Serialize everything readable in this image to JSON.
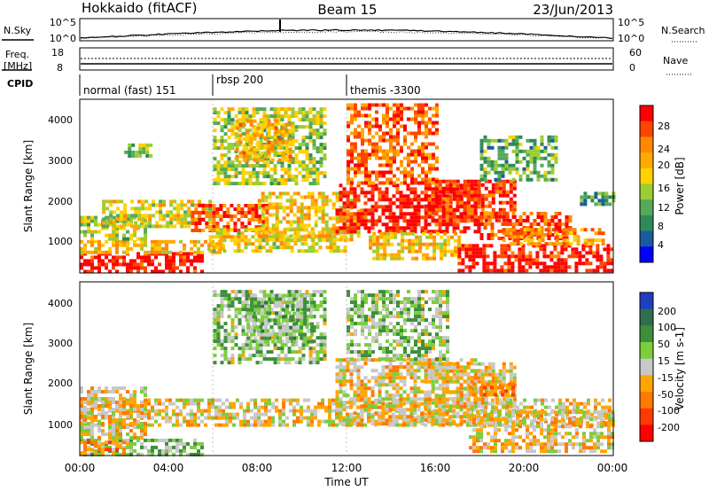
{
  "header": {
    "title": "Hokkaido (fitACF)",
    "beam": "Beam 15",
    "date": "23/Jun/2013"
  },
  "noise_panel": {
    "left_label": "N.Sky",
    "right_label": "N.Search",
    "yticks_left": [
      "10^5",
      "10^0"
    ],
    "yticks_right": [
      "10^5",
      "10^0"
    ]
  },
  "freq_panel": {
    "left_label_1": "Freq.",
    "left_label_2": "[MHz]",
    "right_label": "Nave",
    "yticks_left": [
      "18",
      "8"
    ],
    "yticks_right": [
      "60",
      "0"
    ]
  },
  "cpid_panel": {
    "label": "CPID",
    "modes": [
      {
        "label": "normal (fast) 151",
        "start_hour": 0
      },
      {
        "label": "rbsp 200",
        "start_hour": 6
      },
      {
        "label": "themis -3300",
        "start_hour": 12
      }
    ]
  },
  "xaxis": {
    "label": "Time UT",
    "ticks": [
      "00:00",
      "04:00",
      "08:00",
      "12:00",
      "16:00",
      "20:00",
      "00:00"
    ]
  },
  "chart_data": [
    {
      "type": "heatmap",
      "name": "power",
      "ylabel": "Slant Range [km]",
      "yticks": [
        "4000",
        "3000",
        "2000",
        "1000"
      ],
      "ylim": [
        180,
        4500
      ],
      "xlim_hours": [
        0,
        24
      ],
      "colorbar": {
        "label": "Power [dB]",
        "ticks": [
          "28",
          "24",
          "20",
          "16",
          "12",
          "8",
          "4"
        ],
        "colors": [
          "#ff0000",
          "#ff4400",
          "#ff8800",
          "#ffaa00",
          "#ffd100",
          "#9acd32",
          "#56a85a",
          "#2e8b57",
          "#1a5aa0",
          "#0000ff"
        ]
      },
      "regions": [
        {
          "x": [
            0.0,
            5.5
          ],
          "y": [
            200,
            700
          ],
          "level": 0.95
        },
        {
          "x": [
            0.0,
            6.5
          ],
          "y": [
            700,
            1000
          ],
          "level": 0.6
        },
        {
          "x": [
            0.0,
            3.0
          ],
          "y": [
            1000,
            1600
          ],
          "level": 0.45
        },
        {
          "x": [
            1.0,
            6.0
          ],
          "y": [
            1300,
            2000
          ],
          "level": 0.55
        },
        {
          "x": [
            5.0,
            8.5
          ],
          "y": [
            1200,
            1900
          ],
          "level": 0.85
        },
        {
          "x": [
            5.8,
            12.0
          ],
          "y": [
            700,
            1300
          ],
          "level": 0.55
        },
        {
          "x": [
            6.0,
            11.0
          ],
          "y": [
            2400,
            4300
          ],
          "level": 0.45
        },
        {
          "x": [
            7.0,
            9.5
          ],
          "y": [
            3000,
            4000
          ],
          "level": 0.65
        },
        {
          "x": [
            8.0,
            12.5
          ],
          "y": [
            1000,
            2200
          ],
          "level": 0.6
        },
        {
          "x": [
            11.5,
            18.0
          ],
          "y": [
            1200,
            2400
          ],
          "level": 0.95
        },
        {
          "x": [
            12.0,
            16.0
          ],
          "y": [
            2400,
            4400
          ],
          "level": 0.8
        },
        {
          "x": [
            13.0,
            17.0
          ],
          "y": [
            500,
            1200
          ],
          "level": 0.6
        },
        {
          "x": [
            15.5,
            19.5
          ],
          "y": [
            1500,
            2500
          ],
          "level": 0.9
        },
        {
          "x": [
            17.0,
            24.0
          ],
          "y": [
            200,
            900
          ],
          "level": 0.95
        },
        {
          "x": [
            18.0,
            22.0
          ],
          "y": [
            1000,
            1700
          ],
          "level": 0.85
        },
        {
          "x": [
            19.0,
            23.5
          ],
          "y": [
            900,
            1300
          ],
          "level": 0.7
        },
        {
          "x": [
            18.0,
            21.5
          ],
          "y": [
            2500,
            3600
          ],
          "level": 0.35
        },
        {
          "x": [
            22.5,
            24.0
          ],
          "y": [
            1900,
            2200
          ],
          "level": 0.3
        },
        {
          "x": [
            2.0,
            3.2
          ],
          "y": [
            3100,
            3400
          ],
          "level": 0.4
        }
      ]
    },
    {
      "type": "heatmap",
      "name": "velocity",
      "ylabel": "Slant Range [km]",
      "yticks": [
        "4000",
        "3000",
        "2000",
        "1000"
      ],
      "ylim": [
        180,
        4500
      ],
      "xlim_hours": [
        0,
        24
      ],
      "colorbar": {
        "label": "Velocity [m s-1]",
        "ticks": [
          "200",
          "100",
          "50",
          "15",
          "-15",
          "-50",
          "-100",
          "-200"
        ],
        "colors": [
          "#1f3fbf",
          "#2f6f4f",
          "#3d8f3d",
          "#7ccd3c",
          "#c8c8c8",
          "#ffa500",
          "#ff7a00",
          "#ff3a00",
          "#ff0000"
        ]
      },
      "regions": [
        {
          "x": [
            0.0,
            24.0
          ],
          "y": [
            900,
            1600
          ],
          "level": 0.45
        },
        {
          "x": [
            0.0,
            5.5
          ],
          "y": [
            200,
            600
          ],
          "level": 0.6
        },
        {
          "x": [
            0.0,
            3.0
          ],
          "y": [
            600,
            1900
          ],
          "level": 0.45
        },
        {
          "x": [
            6.0,
            11.0
          ],
          "y": [
            2500,
            4300
          ],
          "level": 0.6
        },
        {
          "x": [
            7.5,
            10.5
          ],
          "y": [
            3000,
            4200
          ],
          "level": 0.62
        },
        {
          "x": [
            11.5,
            18.0
          ],
          "y": [
            1000,
            2600
          ],
          "level": 0.45
        },
        {
          "x": [
            12.0,
            16.5
          ],
          "y": [
            2600,
            4300
          ],
          "level": 0.6
        },
        {
          "x": [
            15.5,
            19.5
          ],
          "y": [
            1400,
            2500
          ],
          "level": 0.46
        },
        {
          "x": [
            17.5,
            24.0
          ],
          "y": [
            300,
            1300
          ],
          "level": 0.45
        },
        {
          "x": [
            17.5,
            19.5
          ],
          "y": [
            1700,
            2000
          ],
          "level": 0.3
        },
        {
          "x": [
            0.0,
            2.0
          ],
          "y": [
            250,
            550
          ],
          "level": 0.3
        }
      ]
    }
  ]
}
